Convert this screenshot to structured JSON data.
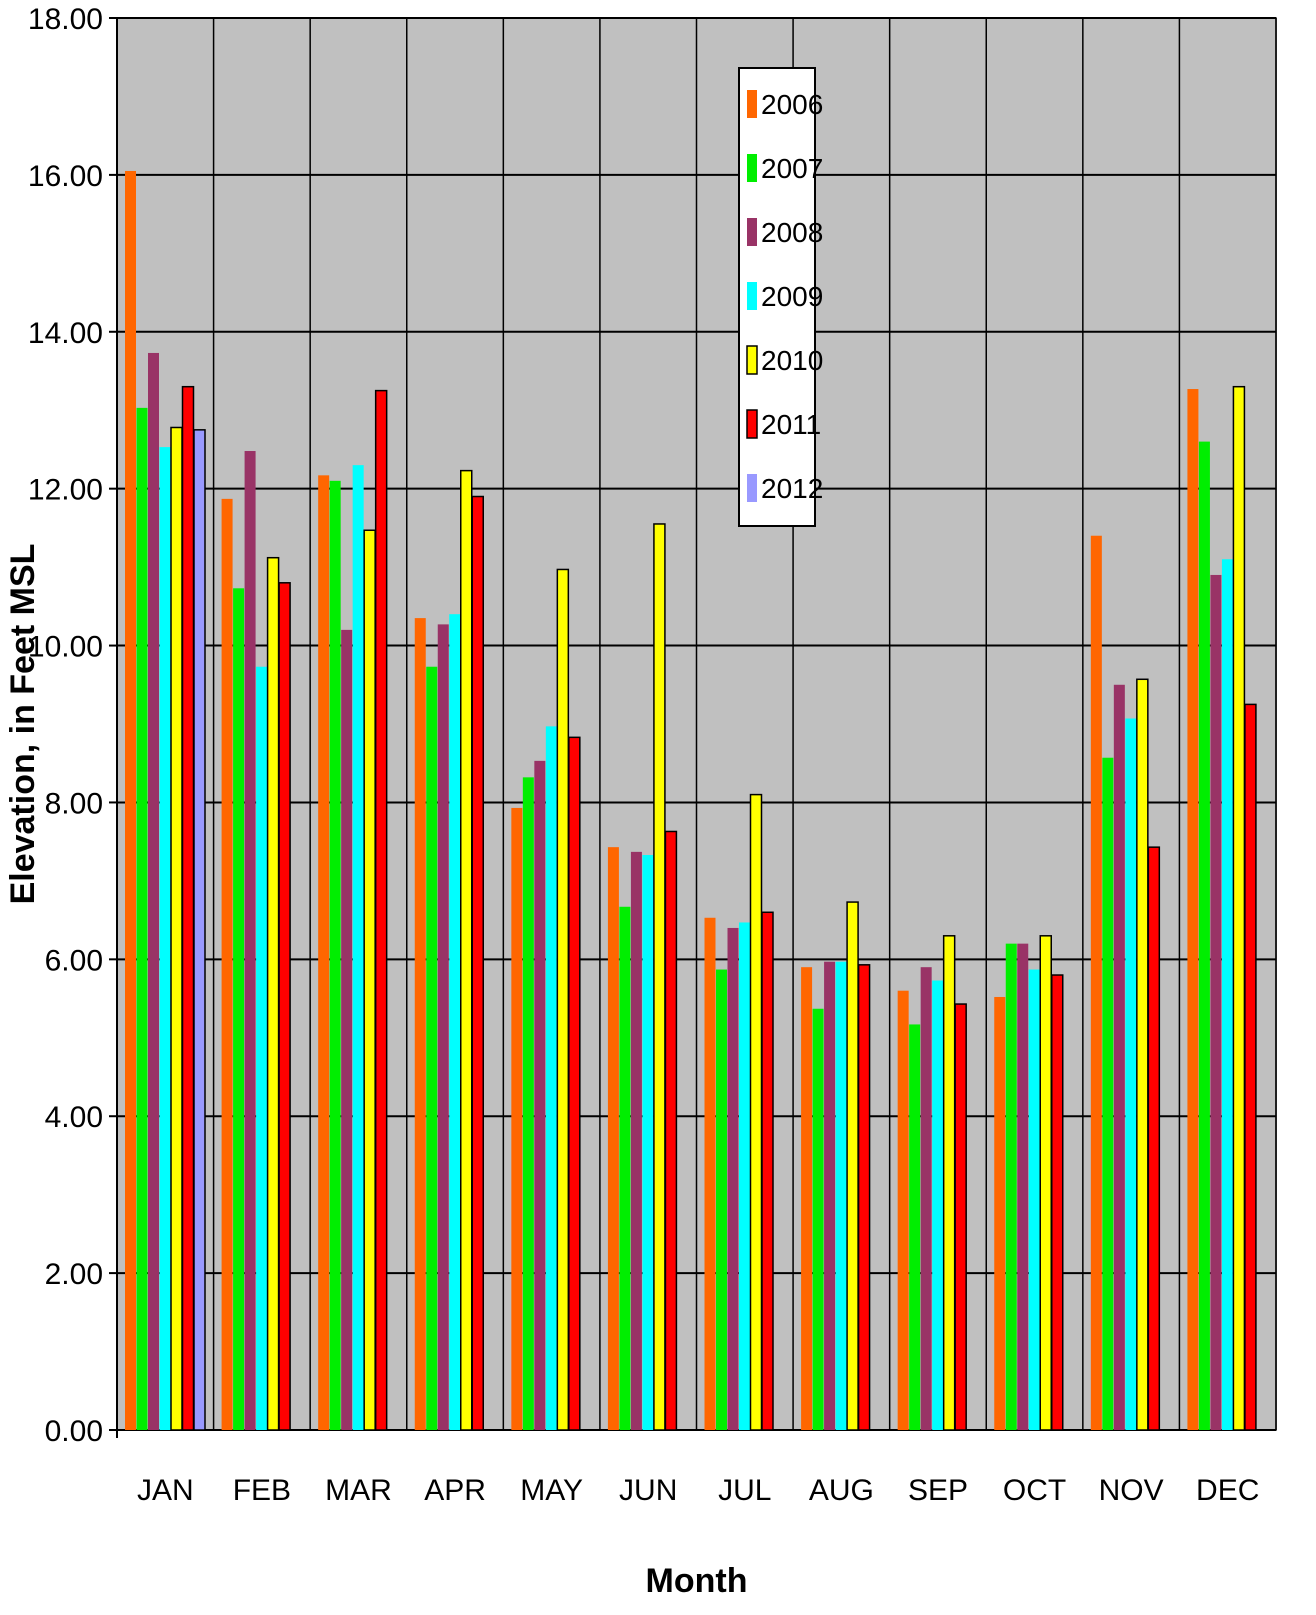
{
  "chart_data": {
    "type": "bar",
    "title": "",
    "xlabel": "Month",
    "ylabel": "Elevation, in Feet MSL",
    "ylim": [
      0,
      18
    ],
    "yticks": [
      "0.00",
      "2.00",
      "4.00",
      "6.00",
      "8.00",
      "10.00",
      "12.00",
      "14.00",
      "16.00",
      "18.00"
    ],
    "grid": "horizontal",
    "legend_position": "top-center",
    "categories": [
      "JAN",
      "FEB",
      "MAR",
      "APR",
      "MAY",
      "JUN",
      "JUL",
      "AUG",
      "SEP",
      "OCT",
      "NOV",
      "DEC"
    ],
    "series": [
      {
        "name": "2006",
        "color": "#FF6600",
        "values": [
          16.05,
          11.87,
          12.17,
          10.35,
          7.93,
          7.43,
          6.53,
          5.9,
          5.6,
          5.52,
          11.4,
          13.27
        ]
      },
      {
        "name": "2007",
        "color": "#00EE00",
        "values": [
          13.03,
          10.73,
          12.1,
          9.73,
          8.32,
          6.67,
          5.87,
          5.37,
          5.17,
          6.2,
          8.57,
          12.6
        ]
      },
      {
        "name": "2008",
        "color": "#993366",
        "values": [
          13.73,
          12.48,
          10.2,
          10.27,
          8.53,
          7.37,
          6.4,
          5.97,
          5.9,
          6.2,
          9.5,
          10.9
        ]
      },
      {
        "name": "2009",
        "color": "#00FFFF",
        "values": [
          12.53,
          9.73,
          12.3,
          10.4,
          8.97,
          7.33,
          6.47,
          5.97,
          5.73,
          5.87,
          9.07,
          11.1
        ]
      },
      {
        "name": "2010",
        "color": "#FFFF00",
        "values": [
          12.78,
          11.12,
          11.47,
          12.23,
          10.97,
          11.55,
          8.1,
          6.73,
          6.3,
          6.3,
          9.57,
          13.3
        ]
      },
      {
        "name": "2011",
        "color": "#FF0000",
        "values": [
          13.3,
          10.8,
          13.25,
          11.9,
          8.83,
          7.63,
          6.6,
          5.93,
          5.43,
          5.8,
          7.43,
          9.25
        ]
      },
      {
        "name": "2012",
        "color": "#9999FF",
        "values": [
          12.75,
          null,
          null,
          null,
          null,
          null,
          null,
          null,
          null,
          null,
          null,
          null
        ]
      }
    ],
    "colors": {
      "plot_background": "#C0C0C0",
      "gridline": "#000000"
    }
  }
}
